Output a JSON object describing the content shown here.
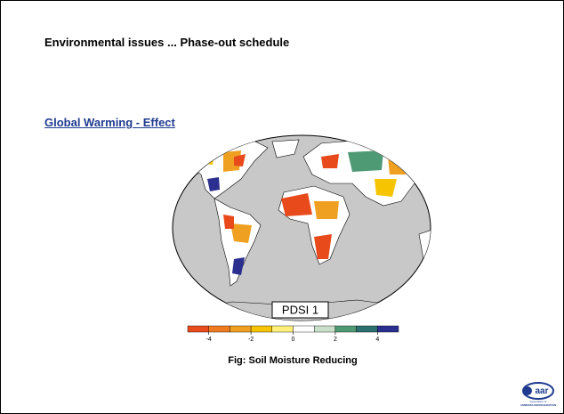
{
  "header": {
    "title": "Environmental issues ... Phase-out schedule"
  },
  "section": {
    "title": "Global Warming - Effect"
  },
  "figure": {
    "map_label": "PDSI 1",
    "colorbar": {
      "ticks": [
        -4,
        -2,
        0,
        2,
        4
      ]
    },
    "caption": "Fig: Soil Moisture Reducing"
  },
  "logo": {
    "text": "aar",
    "org_line1": "Association of",
    "org_line2": "AMMONIA REFRIGERATION"
  }
}
